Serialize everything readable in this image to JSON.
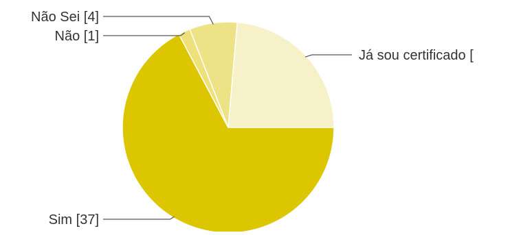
{
  "chart_data": {
    "type": "pie",
    "title": "",
    "slices": [
      {
        "label": "Já sou certificado [",
        "value": 13,
        "color": "#f6f1c8"
      },
      {
        "label": "Sim [37]",
        "value": 37,
        "color": "#dcc600"
      },
      {
        "label": "Não [1]",
        "value": 1,
        "color": "#eee07a"
      },
      {
        "label": "Não Sei [4]",
        "value": 4,
        "color": "#eee286"
      }
    ],
    "start_angle_deg": 90,
    "direction": "clockwise",
    "legend": "callout-labels"
  },
  "colors": {
    "leader_line": "#555555",
    "slice_border": "#ffffff",
    "text": "#333333"
  }
}
